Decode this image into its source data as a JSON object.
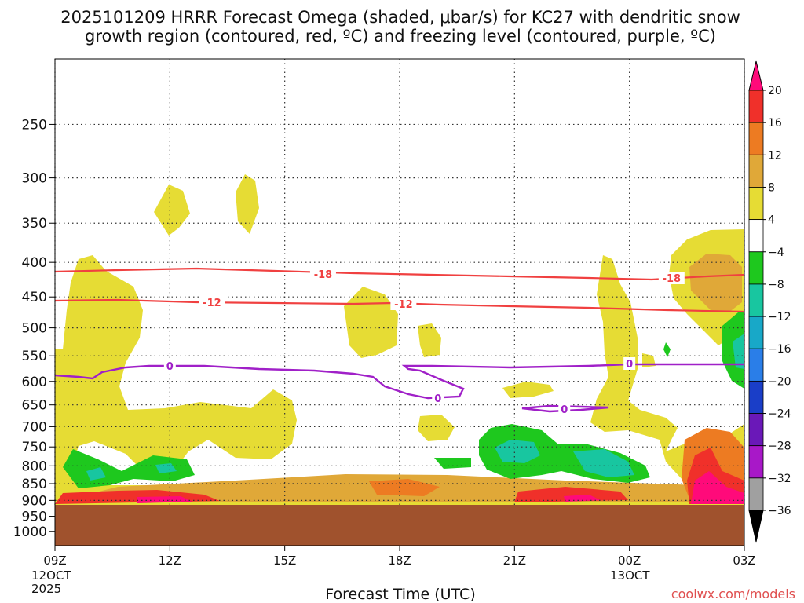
{
  "chart_data": {
    "type": "heatmap",
    "title_line1": "2025101209 HRRR Forecast Omega (shaded, μbar/s) for KC27 with dendritic snow",
    "title_line2": "growth region (contoured, red, ºC) and freezing level (contoured, purple, ºC)",
    "xlabel": "Forecast Time (UTC)",
    "watermark": "coolwx.com/models",
    "x_hours": [
      0,
      3,
      6,
      9,
      12,
      15,
      18
    ],
    "x_tick_labels": [
      "09Z",
      "12Z",
      "15Z",
      "18Z",
      "21Z",
      "00Z",
      "03Z"
    ],
    "x_date_labels": [
      {
        "hour": 0,
        "lines": [
          "12OCT",
          "2025"
        ]
      },
      {
        "hour": 15,
        "lines": [
          "13OCT"
        ]
      }
    ],
    "y_pressure_levels": [
      250,
      300,
      350,
      400,
      450,
      500,
      550,
      600,
      650,
      700,
      750,
      800,
      850,
      900,
      950,
      1000
    ],
    "y_tick_labels": [
      "250",
      "300",
      "350",
      "400",
      "450",
      "500",
      "550",
      "600",
      "650",
      "700",
      "750",
      "800",
      "850",
      "900",
      "950",
      "1000"
    ],
    "ylim_hpa": [
      200,
      1050
    ],
    "ground_level_hpa": 915,
    "colorbar": {
      "labels": [
        "20",
        "16",
        "12",
        "8",
        "4",
        "−4",
        "−8",
        "−12",
        "−16",
        "−20",
        "−24",
        "−28",
        "−32",
        "−36"
      ],
      "colors": [
        "#ff0a7a",
        "#f0302a",
        "#ed7b22",
        "#e0a838",
        "#e6dc34",
        "#ffffff",
        "#1ec81e",
        "#18c6a0",
        "#18a8c8",
        "#2a7ee8",
        "#1a3ec8",
        "#6a18b8",
        "#a818c8",
        "#a0a0a0",
        "#000000"
      ]
    },
    "contours": {
      "snow_growth": {
        "color": "#f04040",
        "labels": [
          {
            "value": "-18",
            "hour": 7.0
          },
          {
            "value": "-18",
            "hour": 16.1
          },
          {
            "value": "-12",
            "hour": 4.1
          },
          {
            "value": "-12",
            "hour": 9.1
          }
        ]
      },
      "freezing_level": {
        "color": "#a020c8",
        "labels": [
          {
            "value": "0",
            "hour": 3.0
          },
          {
            "value": "0",
            "hour": 10.0
          },
          {
            "value": "0",
            "hour": 13.3
          },
          {
            "value": "0",
            "hour": 15.0
          }
        ]
      }
    },
    "colors": {
      "upward_weak": "#e6dc34",
      "upward_mod": "#e0a838",
      "upward_strong": "#ed7b22",
      "upward_very_strong": "#f0302a",
      "upward_extreme": "#ff0a7a",
      "downward_weak": "#1ec81e",
      "downward_mod": "#18c6a0",
      "terrain": "#a0522d",
      "snow_contour": "#f04040",
      "freezing_contour": "#a020c8",
      "watermark": "#e05050"
    }
  }
}
